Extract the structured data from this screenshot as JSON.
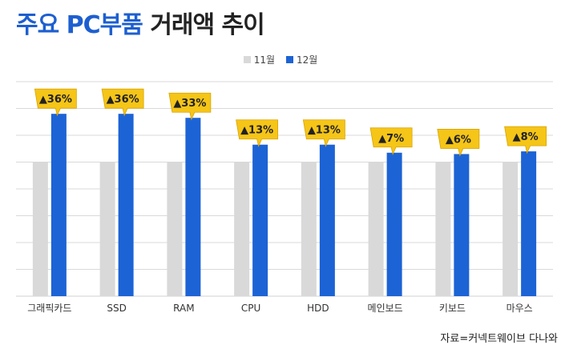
{
  "title": {
    "part1": "주요 PC부품",
    "part2": "거래액 추이"
  },
  "source": "자료=커넥트웨이브 다나와",
  "colors": {
    "nov": "#d9d9d9",
    "dec": "#1c63d5",
    "callout": "#f5c518",
    "grid": "#d9d9d9"
  },
  "chart_data": {
    "type": "bar",
    "categories": [
      "그래픽카드",
      "SSD",
      "RAM",
      "CPU",
      "HDD",
      "메인보드",
      "키보드",
      "마우스"
    ],
    "series": [
      {
        "name": "11월",
        "values": [
          100,
          100,
          100,
          100,
          100,
          100,
          100,
          100
        ]
      },
      {
        "name": "12월",
        "values": [
          136,
          136,
          133,
          113,
          113,
          107,
          106,
          108
        ]
      }
    ],
    "annotations": [
      "▲36%",
      "▲36%",
      "▲33%",
      "▲13%",
      "▲13%",
      "▲7%",
      "▲6%",
      "▲8%"
    ],
    "ylim": [
      0,
      160
    ],
    "legend": "top-center",
    "grid": true
  }
}
